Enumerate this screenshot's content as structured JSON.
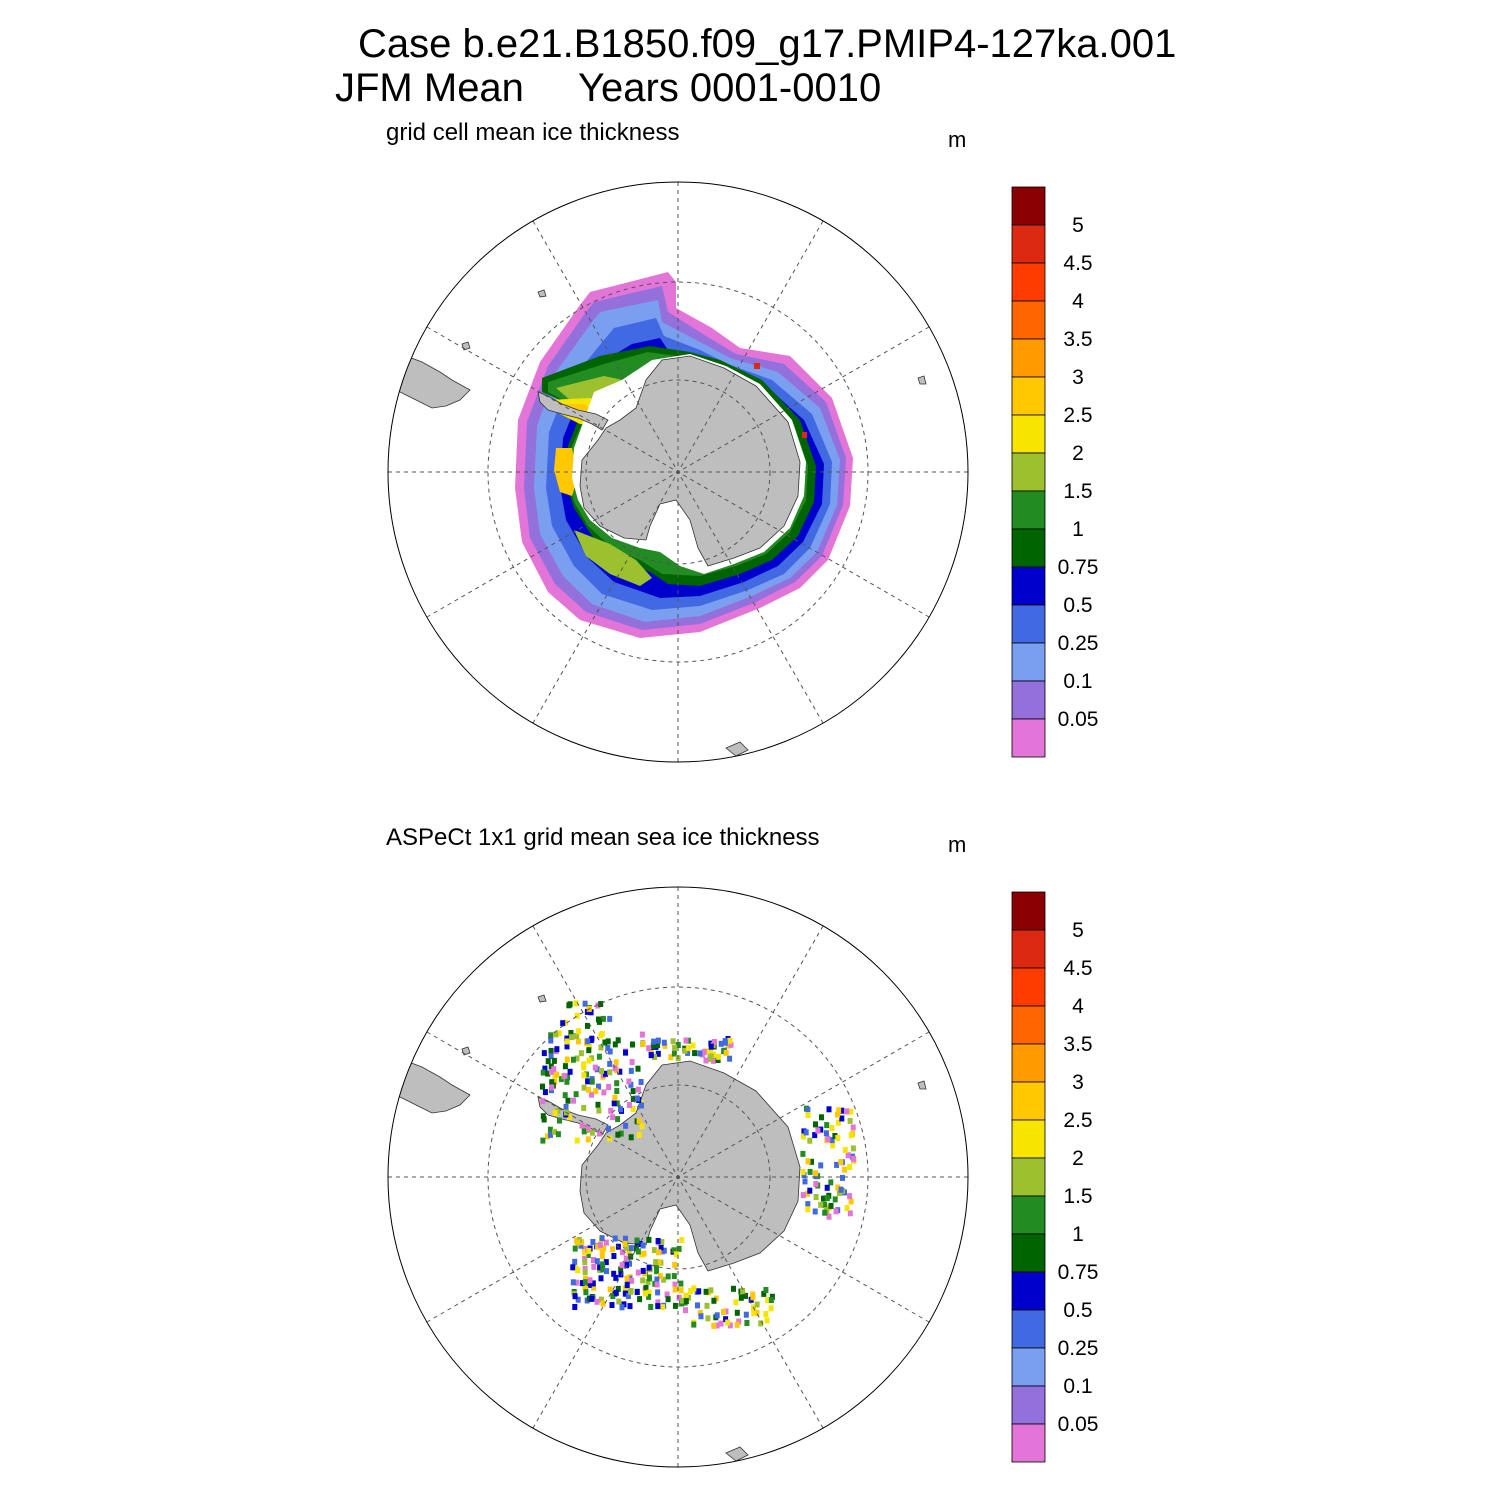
{
  "header": {
    "line1": "Case b.e21.B1850.f09_g17.PMIP4-127ka.001",
    "line2_left": "JFM Mean",
    "line2_right": "Years 0001-0010"
  },
  "panels": [
    {
      "title": "grid cell mean ice thickness",
      "unit": "m"
    },
    {
      "title": "ASPeCt 1x1 grid mean sea ice thickness",
      "unit": "m"
    }
  ],
  "colorbar": {
    "labels": [
      "5",
      "4.5",
      "4",
      "3.5",
      "3",
      "2.5",
      "2",
      "1.5",
      "1",
      "0.75",
      "0.5",
      "0.25",
      "0.1",
      "0.05"
    ],
    "colors": [
      "#8b0000",
      "#dc2a12",
      "#ff3c00",
      "#ff6600",
      "#ff9a00",
      "#ffc800",
      "#f7e400",
      "#9dc02f",
      "#228b22",
      "#006400",
      "#0000cd",
      "#4169e1",
      "#7b9ff0",
      "#9370db",
      "#e374d8"
    ]
  },
  "map_colors": {
    "land": "#bebebe",
    "grid": "#555555"
  }
}
